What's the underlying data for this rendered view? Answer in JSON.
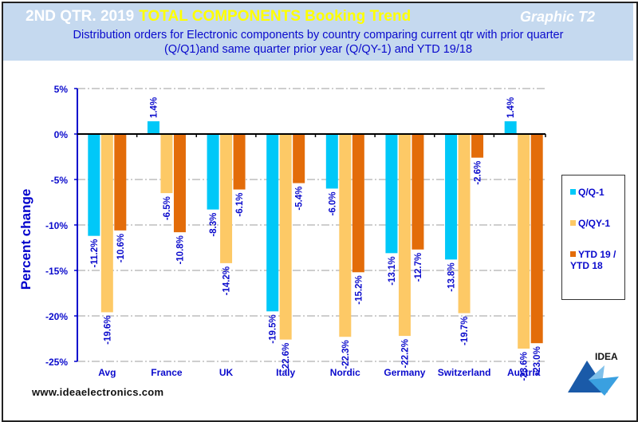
{
  "header": {
    "title_white": "2ND QTR. 2019",
    "title_yellow": "TOTAL COMPONENTS  Booking Trend",
    "graphic_label": "Graphic T2",
    "subtitle_line1": "Distribution  orders for Electronic components by country comparing  current qtr with prior quarter",
    "subtitle_line2": "(Q/Q1)and  same quarter prior year (Q/QY-1)  and YTD  19/18"
  },
  "footer": {
    "website": "www.ideaelectronics.com",
    "logo_text": "IDEA"
  },
  "colors": {
    "qq1": "#00c8f8",
    "qqy1": "#fdc966",
    "ytd": "#e36c09",
    "axis": "#0000cc",
    "label": "#0a0acc"
  },
  "chart_data": {
    "type": "bar",
    "title": "2ND QTR. 2019 TOTAL COMPONENTS Booking Trend",
    "subtitle": "Distribution orders for Electronic components by country comparing current qtr with prior quarter (Q/Q1)and same quarter prior year (Q/QY-1) and YTD 19/18",
    "xlabel": "",
    "ylabel": "Percent change",
    "ylim": [
      -25,
      5
    ],
    "yticks": [
      5,
      0,
      -5,
      -10,
      -15,
      -20,
      -25
    ],
    "ytick_labels": [
      "5%",
      "0%",
      "-5%",
      "-10%",
      "-15%",
      "-20%",
      "-25%"
    ],
    "grid": true,
    "legend_position": "right",
    "categories": [
      "Avg",
      "France",
      "UK",
      "Italy",
      "Nordic",
      "Germany",
      "Switzerland",
      "Austria"
    ],
    "series": [
      {
        "name": "Q/Q-1",
        "values": [
          -11.2,
          1.4,
          -8.3,
          -19.5,
          -6.0,
          -13.1,
          -13.8,
          1.4
        ],
        "labels": [
          "-11.2%",
          "1.4%",
          "-8.3%",
          "-19.5%",
          "-6.0%",
          "-13.1%",
          "-13.8%",
          "1.4%"
        ]
      },
      {
        "name": "Q/QY-1",
        "values": [
          -19.6,
          -6.5,
          -14.2,
          -22.6,
          -22.3,
          -22.2,
          -19.7,
          -23.6
        ],
        "labels": [
          "-19.6%",
          "-6.5%",
          "-14.2%",
          "-22.6%",
          "-22.3%",
          "-22.2%",
          "-19.7%",
          "-23.6%"
        ]
      },
      {
        "name": "YTD 19 / YTD 18",
        "values": [
          -10.6,
          -10.8,
          -6.1,
          -5.4,
          -15.2,
          -12.7,
          -2.6,
          -23.0
        ],
        "labels": [
          "-10.6%",
          "-10.8%",
          "-6.1%",
          "-5.4%",
          "-15.2%",
          "-12.7%",
          "-2.6%",
          "-23.0%"
        ]
      }
    ],
    "legend": [
      "Q/Q-1",
      "Q/QY-1",
      "YTD 19 / YTD 18"
    ]
  }
}
